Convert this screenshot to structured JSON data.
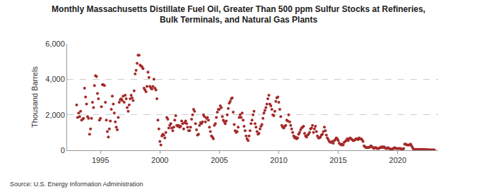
{
  "chart_data": {
    "type": "scatter",
    "title": "Monthly Massachusetts Distillate Fuel Oil, Greater Than 500 ppm Sulfur Stocks at Refineries,\nBulk Terminals, and Natural Gas Plants",
    "y_label": "Thousand Barrels",
    "source": "Source: U.S. Energy Information Administration",
    "color": "#a52a2a",
    "marker": "circle",
    "grid": true,
    "xlim": [
      1992.2,
      2023.4
    ],
    "xticks": [
      1995,
      2000,
      2005,
      2010,
      2015,
      2020
    ],
    "ylim": [
      0,
      6000
    ],
    "yticks": [
      0,
      {
        "value": 2000,
        "label": "2,000"
      },
      {
        "value": 4000,
        "label": "4,000"
      },
      {
        "value": 6000,
        "label": "6,000"
      }
    ],
    "x": [
      1993.0,
      1993.083,
      1993.167,
      1993.25,
      1993.333,
      1993.417,
      1993.5,
      1993.583,
      1993.667,
      1993.75,
      1993.833,
      1993.917,
      1994.0,
      1994.083,
      1994.167,
      1994.25,
      1994.333,
      1994.417,
      1994.5,
      1994.583,
      1994.667,
      1994.75,
      1994.833,
      1994.917,
      1995.0,
      1995.083,
      1995.167,
      1995.25,
      1995.333,
      1995.417,
      1995.5,
      1995.583,
      1995.667,
      1995.75,
      1995.833,
      1995.917,
      1996.0,
      1996.083,
      1996.167,
      1996.25,
      1996.333,
      1996.417,
      1996.5,
      1996.583,
      1996.667,
      1996.75,
      1996.833,
      1996.917,
      1997.0,
      1997.083,
      1997.167,
      1997.25,
      1997.333,
      1997.417,
      1997.5,
      1997.583,
      1997.667,
      1997.75,
      1997.833,
      1997.917,
      1998.0,
      1998.083,
      1998.167,
      1998.25,
      1998.333,
      1998.417,
      1998.5,
      1998.583,
      1998.667,
      1998.75,
      1998.833,
      1998.917,
      1999.0,
      1999.083,
      1999.167,
      1999.25,
      1999.333,
      1999.417,
      1999.5,
      1999.583,
      1999.667,
      1999.75,
      1999.833,
      1999.917,
      2000.0,
      2000.083,
      2000.167,
      2000.25,
      2000.333,
      2000.417,
      2000.5,
      2000.583,
      2000.667,
      2000.75,
      2000.833,
      2000.917,
      2001.0,
      2001.083,
      2001.167,
      2001.25,
      2001.333,
      2001.417,
      2001.5,
      2001.583,
      2001.667,
      2001.75,
      2001.833,
      2001.917,
      2002.0,
      2002.083,
      2002.167,
      2002.25,
      2002.333,
      2002.417,
      2002.5,
      2002.583,
      2002.667,
      2002.75,
      2002.833,
      2002.917,
      2003.0,
      2003.083,
      2003.167,
      2003.25,
      2003.333,
      2003.417,
      2003.5,
      2003.583,
      2003.667,
      2003.75,
      2003.833,
      2003.917,
      2004.0,
      2004.083,
      2004.167,
      2004.25,
      2004.333,
      2004.417,
      2004.5,
      2004.583,
      2004.667,
      2004.75,
      2004.833,
      2004.917,
      2005.0,
      2005.083,
      2005.167,
      2005.25,
      2005.333,
      2005.417,
      2005.5,
      2005.583,
      2005.667,
      2005.75,
      2005.833,
      2005.917,
      2006.0,
      2006.083,
      2006.167,
      2006.25,
      2006.333,
      2006.417,
      2006.5,
      2006.583,
      2006.667,
      2006.75,
      2006.833,
      2006.917,
      2007.0,
      2007.083,
      2007.167,
      2007.25,
      2007.333,
      2007.417,
      2007.5,
      2007.583,
      2007.667,
      2007.75,
      2007.833,
      2007.917,
      2008.0,
      2008.083,
      2008.167,
      2008.25,
      2008.333,
      2008.417,
      2008.5,
      2008.583,
      2008.667,
      2008.75,
      2008.833,
      2008.917,
      2009.0,
      2009.083,
      2009.167,
      2009.25,
      2009.333,
      2009.417,
      2009.5,
      2009.583,
      2009.667,
      2009.75,
      2009.833,
      2009.917,
      2010.0,
      2010.083,
      2010.167,
      2010.25,
      2010.333,
      2010.417,
      2010.5,
      2010.583,
      2010.667,
      2010.75,
      2010.833,
      2010.917,
      2011.0,
      2011.083,
      2011.167,
      2011.25,
      2011.333,
      2011.417,
      2011.5,
      2011.583,
      2011.667,
      2011.75,
      2011.833,
      2011.917,
      2012.0,
      2012.083,
      2012.167,
      2012.25,
      2012.333,
      2012.417,
      2012.5,
      2012.583,
      2012.667,
      2012.75,
      2012.833,
      2012.917,
      2013.0,
      2013.083,
      2013.167,
      2013.25,
      2013.333,
      2013.417,
      2013.5,
      2013.583,
      2013.667,
      2013.75,
      2013.833,
      2013.917,
      2014.0,
      2014.083,
      2014.167,
      2014.25,
      2014.333,
      2014.417,
      2014.5,
      2014.583,
      2014.667,
      2014.75,
      2014.833,
      2014.917,
      2015.0,
      2015.083,
      2015.167,
      2015.25,
      2015.333,
      2015.417,
      2015.5,
      2015.583,
      2015.667,
      2015.75,
      2015.833,
      2015.917,
      2016.0,
      2016.083,
      2016.167,
      2016.25,
      2016.333,
      2016.417,
      2016.5,
      2016.583,
      2016.667,
      2016.75,
      2016.833,
      2016.917,
      2017.0,
      2017.083,
      2017.167,
      2017.25,
      2017.333,
      2017.417,
      2017.5,
      2017.583,
      2017.667,
      2017.75,
      2017.833,
      2017.917,
      2018.0,
      2018.083,
      2018.167,
      2018.25,
      2018.333,
      2018.417,
      2018.5,
      2018.583,
      2018.667,
      2018.75,
      2018.833,
      2018.917,
      2019.0,
      2019.083,
      2019.167,
      2019.25,
      2019.333,
      2019.417,
      2019.5,
      2019.583,
      2019.667,
      2019.75,
      2019.833,
      2019.917,
      2020.0,
      2020.083,
      2020.167,
      2020.25,
      2020.333,
      2020.417,
      2020.5,
      2020.583,
      2020.667,
      2020.75,
      2020.833,
      2020.917,
      2021.0,
      2021.083,
      2021.167,
      2021.25,
      2021.333,
      2021.417,
      2021.5,
      2021.583,
      2021.667,
      2021.75,
      2021.833,
      2021.917,
      2022.0,
      2022.083,
      2022.167,
      2022.25,
      2022.333,
      2022.417,
      2022.5,
      2022.583,
      2022.667,
      2022.75,
      2022.833,
      2022.917,
      2023.0,
      2023.083
    ],
    "values": [
      2550,
      1850,
      2100,
      1900,
      2200,
      1700,
      1750,
      1800,
      3500,
      3000,
      2600,
      1900,
      1800,
      900,
      1200,
      1800,
      2700,
      2400,
      3650,
      4200,
      4150,
      3200,
      2900,
      1700,
      1800,
      2450,
      3700,
      3700,
      3650,
      2700,
      1700,
      1050,
      750,
      1200,
      1650,
      2300,
      3050,
      2600,
      2100,
      1600,
      1300,
      1150,
      1850,
      2700,
      2850,
      2900,
      2800,
      3050,
      2700,
      3100,
      2900,
      2400,
      2200,
      2550,
      2900,
      3100,
      2950,
      2800,
      3350,
      4300,
      4500,
      4900,
      5350,
      5350,
      4800,
      4750,
      4700,
      4600,
      3500,
      3400,
      3300,
      3600,
      4400,
      4100,
      3600,
      3500,
      3450,
      3600,
      4000,
      3500,
      3400,
      2900,
      1700,
      1200,
      500,
      300,
      800,
      900,
      850,
      700,
      1000,
      1850,
      1750,
      1250,
      1400,
      1500,
      1250,
      1100,
      1300,
      1700,
      1950,
      1400,
      1350,
      1400,
      1300,
      1350,
      1650,
      1500,
      1200,
      1550,
      1650,
      1500,
      1300,
      1100,
      1100,
      1300,
      1750,
      2000,
      2300,
      2200,
      1500,
      1150,
      850,
      900,
      1400,
      1550,
      1500,
      1600,
      2000,
      1900,
      1600,
      1800,
      1850,
      1700,
      1300,
      1050,
      800,
      750,
      650,
      1400,
      1500,
      1850,
      2150,
      2300,
      2300,
      2500,
      2400,
      1900,
      1700,
      1600,
      1500,
      1650,
      2000,
      2350,
      2650,
      2750,
      2900,
      2950,
      2150,
      1450,
      1100,
      1000,
      1050,
      1300,
      1850,
      2000,
      1850,
      2100,
      1700,
      1350,
      1100,
      800,
      650,
      550,
      800,
      1100,
      1500,
      1700,
      2000,
      2200,
      1500,
      1300,
      1050,
      900,
      950,
      1200,
      1350,
      1450,
      1800,
      2100,
      2250,
      2400,
      2600,
      2900,
      3100,
      2600,
      2500,
      2300,
      2000,
      1950,
      2200,
      2750,
      2950,
      3000,
      2700,
      2300,
      1900,
      1400,
      1300,
      1250,
      1350,
      1400,
      1700,
      1650,
      2000,
      1600,
      1400,
      1200,
      1000,
      800,
      700,
      750,
      650,
      700,
      900,
      1000,
      1150,
      1250,
      1300,
      1350,
      950,
      800,
      750,
      850,
      900,
      1000,
      1200,
      1250,
      1400,
      1000,
      1200,
      1350,
      1050,
      800,
      700,
      700,
      750,
      850,
      900,
      1050,
      1300,
      1100,
      850,
      700,
      600,
      500,
      450,
      450,
      500,
      400,
      550,
      600,
      700,
      650,
      550,
      400,
      350,
      300,
      350,
      300,
      450,
      500,
      550,
      650,
      550,
      650,
      700,
      650,
      600,
      550,
      550,
      600,
      650,
      650,
      600,
      700,
      650,
      650,
      600,
      500,
      250,
      200,
      150,
      150,
      150,
      150,
      200,
      250,
      200,
      150,
      100,
      150,
      150,
      100,
      100,
      100,
      150,
      150,
      200,
      150,
      200,
      150,
      100,
      100,
      150,
      100,
      100,
      50,
      50,
      100,
      100,
      150,
      100,
      100,
      100,
      100,
      100,
      100,
      50,
      50,
      100,
      350,
      350,
      300,
      300,
      300,
      300,
      350,
      250,
      150,
      50,
      50,
      50,
      50,
      50,
      50,
      50,
      50,
      50,
      50,
      50,
      40,
      40,
      30,
      30,
      30,
      20,
      20,
      20,
      20,
      20,
      20
    ]
  }
}
